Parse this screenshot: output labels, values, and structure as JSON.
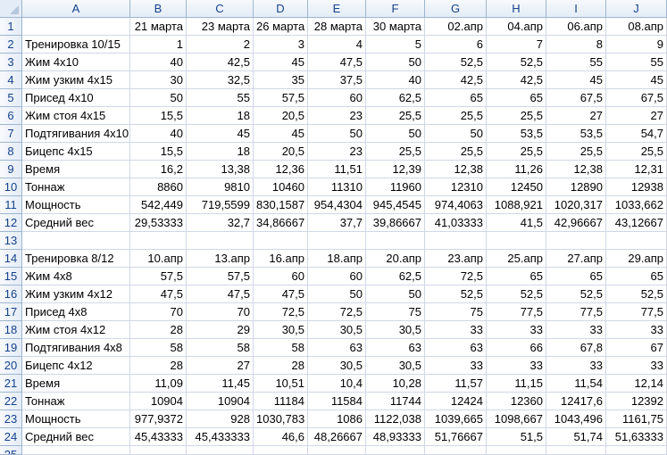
{
  "columns": [
    "A",
    "B",
    "C",
    "D",
    "E",
    "F",
    "G",
    "H",
    "I",
    "J"
  ],
  "rows": [
    [
      "",
      "21 марта",
      "23 марта",
      "26 марта",
      "28 марта",
      "30 марта",
      "02.апр",
      "04.апр",
      "06.апр",
      "08.апр"
    ],
    [
      "Тренировка 10/15",
      "1",
      "2",
      "3",
      "4",
      "5",
      "6",
      "7",
      "8",
      "9"
    ],
    [
      "Жим 4х10",
      "40",
      "42,5",
      "45",
      "47,5",
      "50",
      "52,5",
      "52,5",
      "55",
      "55"
    ],
    [
      "Жим узким 4х15",
      "30",
      "32,5",
      "35",
      "37,5",
      "40",
      "42,5",
      "42,5",
      "45",
      "45"
    ],
    [
      "Присед 4х10",
      "50",
      "55",
      "57,5",
      "60",
      "62,5",
      "65",
      "65",
      "67,5",
      "67,5"
    ],
    [
      "Жим стоя 4х15",
      "15,5",
      "18",
      "20,5",
      "23",
      "25,5",
      "25,5",
      "25,5",
      "27",
      "27"
    ],
    [
      "Подтягивания 4х10",
      "40",
      "45",
      "45",
      "50",
      "50",
      "50",
      "53,5",
      "53,5",
      "54,7"
    ],
    [
      "Бицепс 4х15",
      "15,5",
      "18",
      "20,5",
      "23",
      "25,5",
      "25,5",
      "25,5",
      "25,5",
      "25,5"
    ],
    [
      "Время",
      "16,2",
      "13,38",
      "12,36",
      "11,51",
      "12,39",
      "12,38",
      "11,26",
      "12,38",
      "12,31"
    ],
    [
      "Тоннаж",
      "8860",
      "9810",
      "10460",
      "11310",
      "11960",
      "12310",
      "12450",
      "12890",
      "12938"
    ],
    [
      "Мощность",
      "542,449",
      "719,5599",
      "830,1587",
      "954,4304",
      "945,4545",
      "974,4063",
      "1088,921",
      "1020,317",
      "1033,662"
    ],
    [
      "Средний вес",
      "29,53333",
      "32,7",
      "34,86667",
      "37,7",
      "39,86667",
      "41,03333",
      "41,5",
      "42,96667",
      "43,12667"
    ],
    [
      "",
      "",
      "",
      "",
      "",
      "",
      "",
      "",
      "",
      ""
    ],
    [
      "Тренировка 8/12",
      "10.апр",
      "13.апр",
      "16.апр",
      "18.апр",
      "20.апр",
      "23.апр",
      "25.апр",
      "27.апр",
      "29.апр"
    ],
    [
      "Жим 4х8",
      "57,5",
      "57,5",
      "60",
      "60",
      "62,5",
      "72,5",
      "65",
      "65",
      "65"
    ],
    [
      "Жим узким 4х12",
      "47,5",
      "47,5",
      "47,5",
      "50",
      "50",
      "52,5",
      "52,5",
      "52,5",
      "52,5"
    ],
    [
      "Присед 4х8",
      "70",
      "70",
      "72,5",
      "72,5",
      "75",
      "75",
      "77,5",
      "77,5",
      "77,5"
    ],
    [
      "Жим стоя 4х12",
      "28",
      "29",
      "30,5",
      "30,5",
      "30,5",
      "33",
      "33",
      "33",
      "33"
    ],
    [
      "Подтягивания 4х8",
      "58",
      "58",
      "58",
      "63",
      "63",
      "63",
      "66",
      "67,8",
      "67"
    ],
    [
      "Бицепс 4х12",
      "28",
      "27",
      "28",
      "30,5",
      "30,5",
      "33",
      "33",
      "33",
      "33"
    ],
    [
      "Время",
      "11,09",
      "11,45",
      "10,51",
      "10,4",
      "10,28",
      "11,57",
      "11,15",
      "11,54",
      "12,14"
    ],
    [
      "Тоннаж",
      "10904",
      "10904",
      "11184",
      "11584",
      "11744",
      "12424",
      "12360",
      "12417,6",
      "12392"
    ],
    [
      "Мощность",
      "977,9372",
      "928",
      "1030,783",
      "1086",
      "1122,038",
      "1039,665",
      "1098,667",
      "1043,496",
      "1161,75"
    ],
    [
      "Средний вес",
      "45,43333",
      "45,433333",
      "46,6",
      "48,26667",
      "48,93333",
      "51,76667",
      "51,5",
      "51,74",
      "51,63333"
    ]
  ]
}
